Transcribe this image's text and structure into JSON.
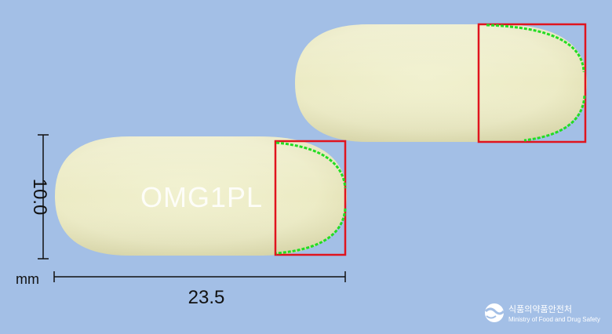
{
  "photo": {
    "background_color": "#a3bfe6",
    "capsule_color": "#eeeec6",
    "highlight_color": "#ff0000",
    "trace_color": "#22dd22"
  },
  "front_capsule": {
    "imprint": "OMG1PL"
  },
  "back_capsule": {
    "imprint": ""
  },
  "dimensions": {
    "height_value": "10.0",
    "length_value": "23.5",
    "unit": "mm"
  },
  "logo": {
    "name_korean": "식품의약품안전처",
    "name_english": "Ministry of Food and Drug Safety"
  }
}
